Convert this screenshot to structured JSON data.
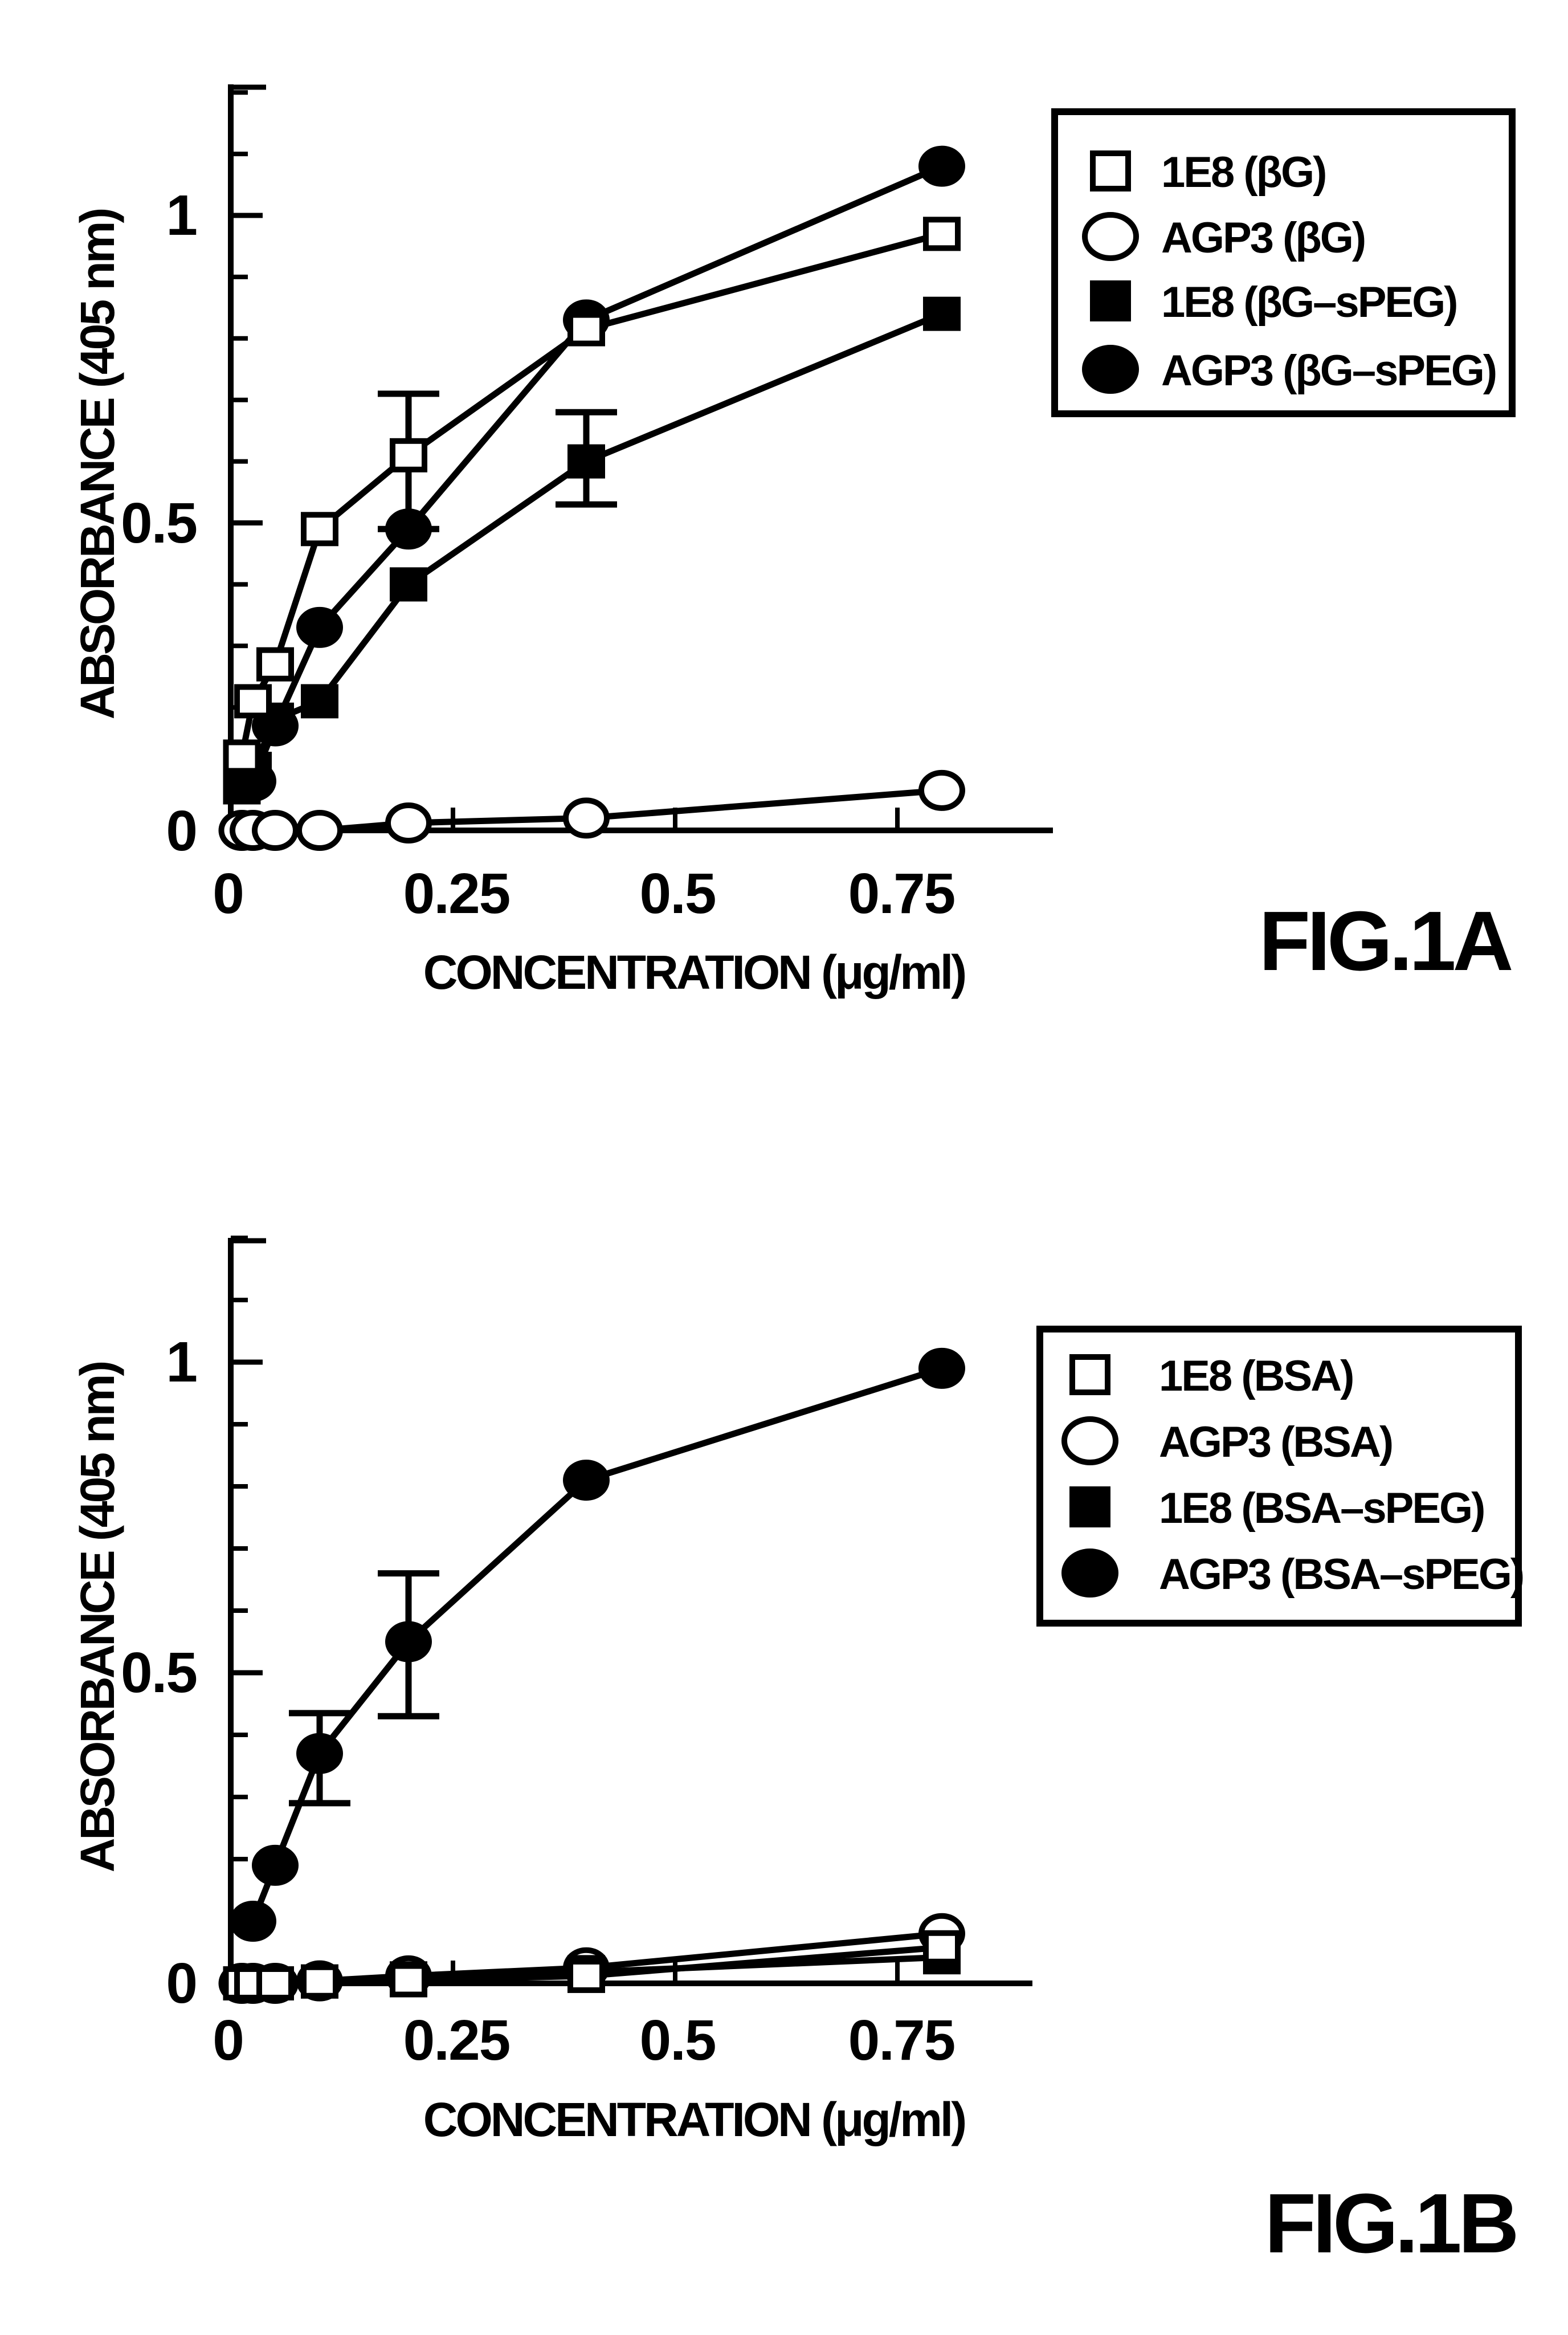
{
  "page": {
    "background": "#ffffff",
    "ink": "#000000"
  },
  "chart_data": [
    {
      "id": "fig1a",
      "type": "line",
      "caption": "FIG.1A",
      "x_axis": {
        "title": "CONCENTRATION (μg/ml)",
        "range": [
          0,
          0.925
        ],
        "ticks": [
          {
            "value": 0,
            "label": "0"
          },
          {
            "value": 0.25,
            "label": "0.25"
          },
          {
            "value": 0.5,
            "label": "0.5"
          },
          {
            "value": 0.75,
            "label": "0.75"
          }
        ]
      },
      "y_axis": {
        "title": "ABSORBANCE (405 nm)",
        "range": [
          0,
          1.21
        ],
        "minor_tick_step": 0.1,
        "ticks": [
          {
            "value": 1,
            "label": "1"
          },
          {
            "value": 0.5,
            "label": "0.5"
          },
          {
            "value": 0,
            "label": "0"
          }
        ]
      },
      "legend": [
        {
          "marker": "square-open",
          "label": "1E8 (βG)"
        },
        {
          "marker": "circle-open",
          "label": "AGP3 (βG)"
        },
        {
          "marker": "square-filled",
          "label": "1E8 (βG–sPEG)"
        },
        {
          "marker": "circle-filled",
          "label": "AGP3 (βG–sPEG)"
        }
      ],
      "series": [
        {
          "name": "1E8 (βG)",
          "marker": "square-open",
          "x": [
            0.0125,
            0.025,
            0.05,
            0.1,
            0.2,
            0.4,
            0.8
          ],
          "y": [
            0.12,
            0.21,
            0.27,
            0.49,
            0.61,
            0.815,
            0.97
          ],
          "error_bars": [
            {
              "x": 0.2,
              "low": 0.49,
              "high": 0.71
            }
          ]
        },
        {
          "name": "AGP3 (βG)",
          "marker": "circle-open",
          "x": [
            0.0125,
            0.025,
            0.05,
            0.1,
            0.2,
            0.4,
            0.8
          ],
          "y": [
            0,
            0,
            0,
            0,
            0.012,
            0.02,
            0.065
          ],
          "error_bars": []
        },
        {
          "name": "1E8 (βG–sPEG)",
          "marker": "square-filled",
          "x": [
            0.0125,
            0.025,
            0.05,
            0.1,
            0.2,
            0.4,
            0.8
          ],
          "y": [
            0.07,
            0.1,
            0.18,
            0.21,
            0.4,
            0.6,
            0.84
          ],
          "error_bars": [
            {
              "x": 0.4,
              "low": 0.53,
              "high": 0.68
            }
          ]
        },
        {
          "name": "AGP3 (βG–sPEG)",
          "marker": "circle-filled",
          "x": [
            0.025,
            0.05,
            0.1,
            0.2,
            0.4,
            0.8
          ],
          "y": [
            0.08,
            0.17,
            0.33,
            0.49,
            0.83,
            1.08
          ],
          "error_bars": []
        }
      ]
    },
    {
      "id": "fig1b",
      "type": "line",
      "caption": "FIG.1B",
      "x_axis": {
        "title": "CONCENTRATION (μg/ml)",
        "range": [
          0,
          0.925
        ],
        "ticks": [
          {
            "value": 0,
            "label": "0"
          },
          {
            "value": 0.25,
            "label": "0.25"
          },
          {
            "value": 0.5,
            "label": "0.5"
          },
          {
            "value": 0.75,
            "label": "0.75"
          }
        ]
      },
      "y_axis": {
        "title": "ABSORBANCE (405 nm)",
        "range": [
          0,
          1.2
        ],
        "minor_tick_step": 0.1,
        "ticks": [
          {
            "value": 1,
            "label": "1"
          },
          {
            "value": 0.5,
            "label": "0.5"
          },
          {
            "value": 0,
            "label": "0"
          }
        ]
      },
      "legend": [
        {
          "marker": "square-open",
          "label": "1E8 (BSA)"
        },
        {
          "marker": "circle-open",
          "label": "AGP3 (BSA)"
        },
        {
          "marker": "square-filled",
          "label": "1E8 (BSA–sPEG)"
        },
        {
          "marker": "circle-filled",
          "label": "AGP3 (BSA–sPEG)"
        }
      ],
      "series": [
        {
          "name": "1E8 (BSA)",
          "marker": "square-open",
          "x": [
            0.0125,
            0.025,
            0.05,
            0.1,
            0.2,
            0.4,
            0.8
          ],
          "y": [
            0,
            0,
            0,
            0.003,
            0.005,
            0.012,
            0.058
          ],
          "error_bars": []
        },
        {
          "name": "AGP3 (BSA)",
          "marker": "circle-open",
          "x": [
            0.0125,
            0.025,
            0.05,
            0.1,
            0.2,
            0.4,
            0.8
          ],
          "y": [
            0,
            0,
            0,
            0.004,
            0.012,
            0.025,
            0.08
          ],
          "error_bars": []
        },
        {
          "name": "1E8 (BSA–sPEG)",
          "marker": "square-filled",
          "x": [
            0.0125,
            0.025,
            0.05,
            0.1,
            0.2,
            0.4,
            0.8
          ],
          "y": [
            0,
            0,
            0,
            0.003,
            0.008,
            0.018,
            0.042
          ],
          "error_bars": []
        },
        {
          "name": "AGP3 (BSA–sPEG)",
          "marker": "circle-filled",
          "x": [
            0.025,
            0.05,
            0.1,
            0.2,
            0.4,
            0.8
          ],
          "y": [
            0.1,
            0.19,
            0.37,
            0.55,
            0.81,
            0.99
          ],
          "error_bars": [
            {
              "x": 0.1,
              "low": 0.29,
              "high": 0.435
            },
            {
              "x": 0.2,
              "low": 0.43,
              "high": 0.66
            }
          ]
        }
      ]
    }
  ]
}
